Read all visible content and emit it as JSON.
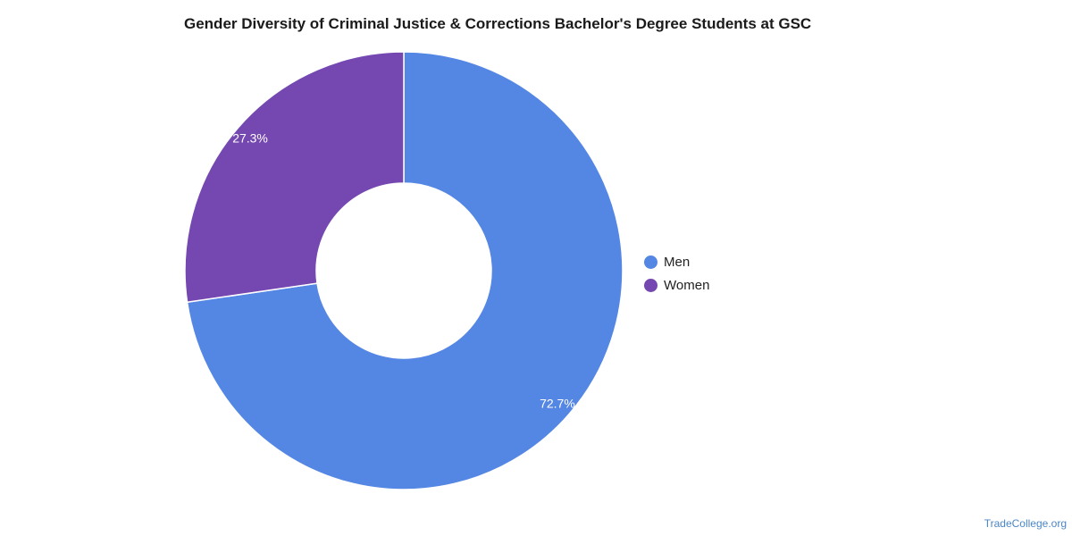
{
  "chart_data": {
    "type": "pie",
    "title": "Gender Diversity of Criminal Justice & Corrections Bachelor's Degree Students at GSC",
    "donut": true,
    "legend_position": "right",
    "slices": [
      {
        "label": "Men",
        "value": 72.7,
        "display": "72.7%",
        "color": "#5486e4"
      },
      {
        "label": "Women",
        "value": 27.3,
        "display": "27.3%",
        "color": "#7547b1"
      }
    ]
  },
  "legend": [
    {
      "label": "Men",
      "color": "#5486e4"
    },
    {
      "label": "Women",
      "color": "#7547b1"
    }
  ],
  "watermark": "TradeCollege.org"
}
